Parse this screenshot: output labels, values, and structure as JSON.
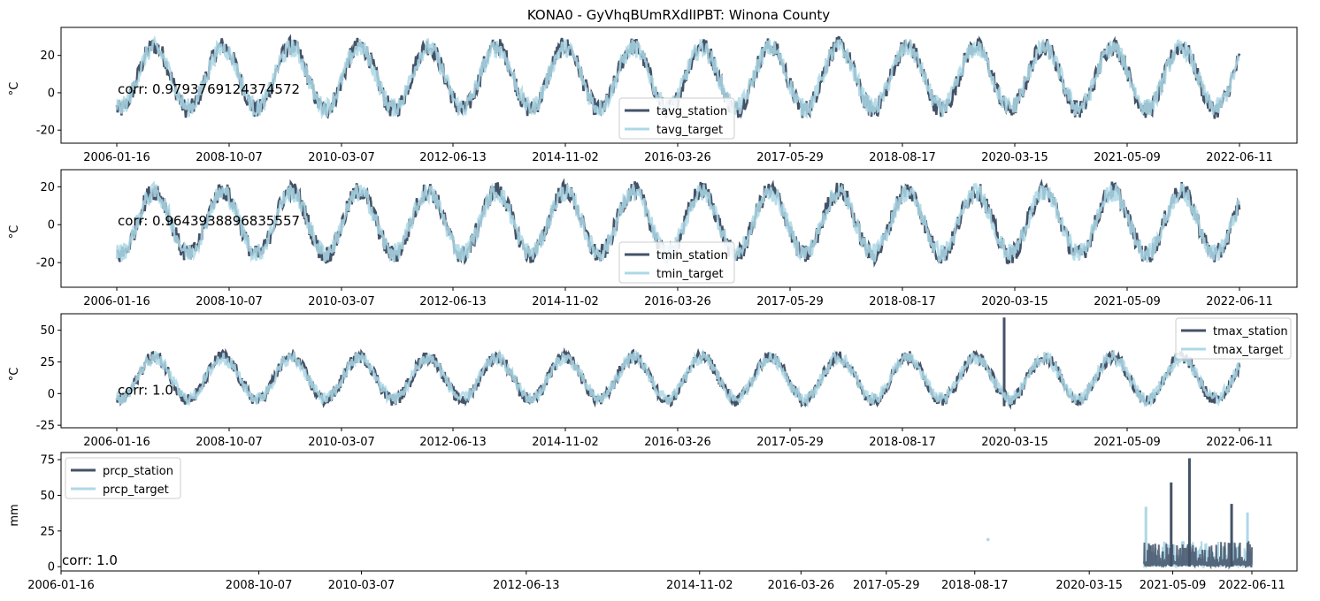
{
  "title": "KONA0 - GyVhqBUmRXdlIPBT: Winona County",
  "colors": {
    "station": "#445267",
    "target": "#add8e6",
    "overlap": "#8ab4c9"
  },
  "chart_data": [
    {
      "type": "line",
      "ylabel": "°C",
      "ylim": [
        -27,
        35
      ],
      "yticks": [
        -20,
        0,
        20
      ],
      "xticklabels": [
        "2006-01-16",
        "2008-10-07",
        "2010-03-07",
        "2012-06-13",
        "2014-11-02",
        "2016-03-26",
        "2017-05-29",
        "2018-08-17",
        "2020-03-15",
        "2021-05-09",
        "2022-06-11"
      ],
      "annotation": "corr: 0.9793769124374572",
      "legend": {
        "placement": "lower-center",
        "entries": [
          "tavg_station",
          "tavg_target"
        ]
      },
      "series": [
        {
          "name": "tavg_station",
          "seasonal_mean": 8,
          "seasonal_amplitude": 17,
          "noise": 5
        },
        {
          "name": "tavg_target",
          "seasonal_mean": 8,
          "seasonal_amplitude": 16,
          "noise": 5
        }
      ]
    },
    {
      "type": "line",
      "ylabel": "°C",
      "ylim": [
        -33,
        29
      ],
      "yticks": [
        -20,
        0,
        20
      ],
      "xticklabels": [
        "2006-01-16",
        "2008-10-07",
        "2010-03-07",
        "2012-06-13",
        "2014-11-02",
        "2016-03-26",
        "2017-05-29",
        "2018-08-17",
        "2020-03-15",
        "2021-05-09",
        "2022-06-11"
      ],
      "annotation": "corr: 0.9643938896835557",
      "legend": {
        "placement": "lower-center",
        "entries": [
          "tmin_station",
          "tmin_target"
        ]
      },
      "series": [
        {
          "name": "tmin_station",
          "seasonal_mean": 1,
          "seasonal_amplitude": 17,
          "noise": 5
        },
        {
          "name": "tmin_target",
          "seasonal_mean": 1,
          "seasonal_amplitude": 16,
          "noise": 5
        }
      ]
    },
    {
      "type": "line",
      "ylabel": "°C",
      "ylim": [
        -27,
        63
      ],
      "yticks": [
        -25,
        0,
        25,
        50
      ],
      "xticklabels": [
        "2006-01-16",
        "2008-10-07",
        "2010-03-07",
        "2012-06-13",
        "2014-11-02",
        "2016-03-26",
        "2017-05-29",
        "2018-08-17",
        "2020-03-15",
        "2021-05-09",
        "2022-06-11"
      ],
      "annotation": "corr: 1.0",
      "legend": {
        "placement": "upper-right",
        "entries": [
          "tmax_station",
          "tmax_target"
        ]
      },
      "series": [
        {
          "name": "tmax_station",
          "seasonal_mean": 12,
          "seasonal_amplitude": 17,
          "noise": 5,
          "spike": {
            "x": "2019-12-01",
            "y": 60
          }
        },
        {
          "name": "tmax_target",
          "seasonal_mean": 12,
          "seasonal_amplitude": 16,
          "noise": 5
        }
      ]
    },
    {
      "type": "line",
      "ylabel": "mm",
      "ylim": [
        -3,
        80
      ],
      "yticks": [
        0,
        25,
        50,
        75
      ],
      "xticklabels": [
        "2006-01-16",
        "2008-10-07",
        "2010-03-07",
        "2012-06-13",
        "2014-11-02",
        "2016-03-26",
        "2017-05-29",
        "2018-08-17",
        "2020-03-15",
        "2021-05-09",
        "2022-06-11"
      ],
      "annotation": "corr: 1.0",
      "legend": {
        "placement": "upper-left",
        "entries": [
          "prcp_station",
          "prcp_target"
        ]
      },
      "series": [
        {
          "name": "prcp_station",
          "active_from": "2020-12-15",
          "peaks": [
            {
              "x": "2021-05-01",
              "y": 59
            },
            {
              "x": "2021-08-01",
              "y": 76
            },
            {
              "x": "2022-03-01",
              "y": 44
            }
          ]
        },
        {
          "name": "prcp_target",
          "active_from": "2020-12-15",
          "isolated_point": {
            "x": "2018-08-17",
            "y": 19
          },
          "peaks": [
            {
              "x": "2020-12-25",
              "y": 42
            },
            {
              "x": "2022-05-20",
              "y": 38
            }
          ]
        }
      ]
    }
  ]
}
